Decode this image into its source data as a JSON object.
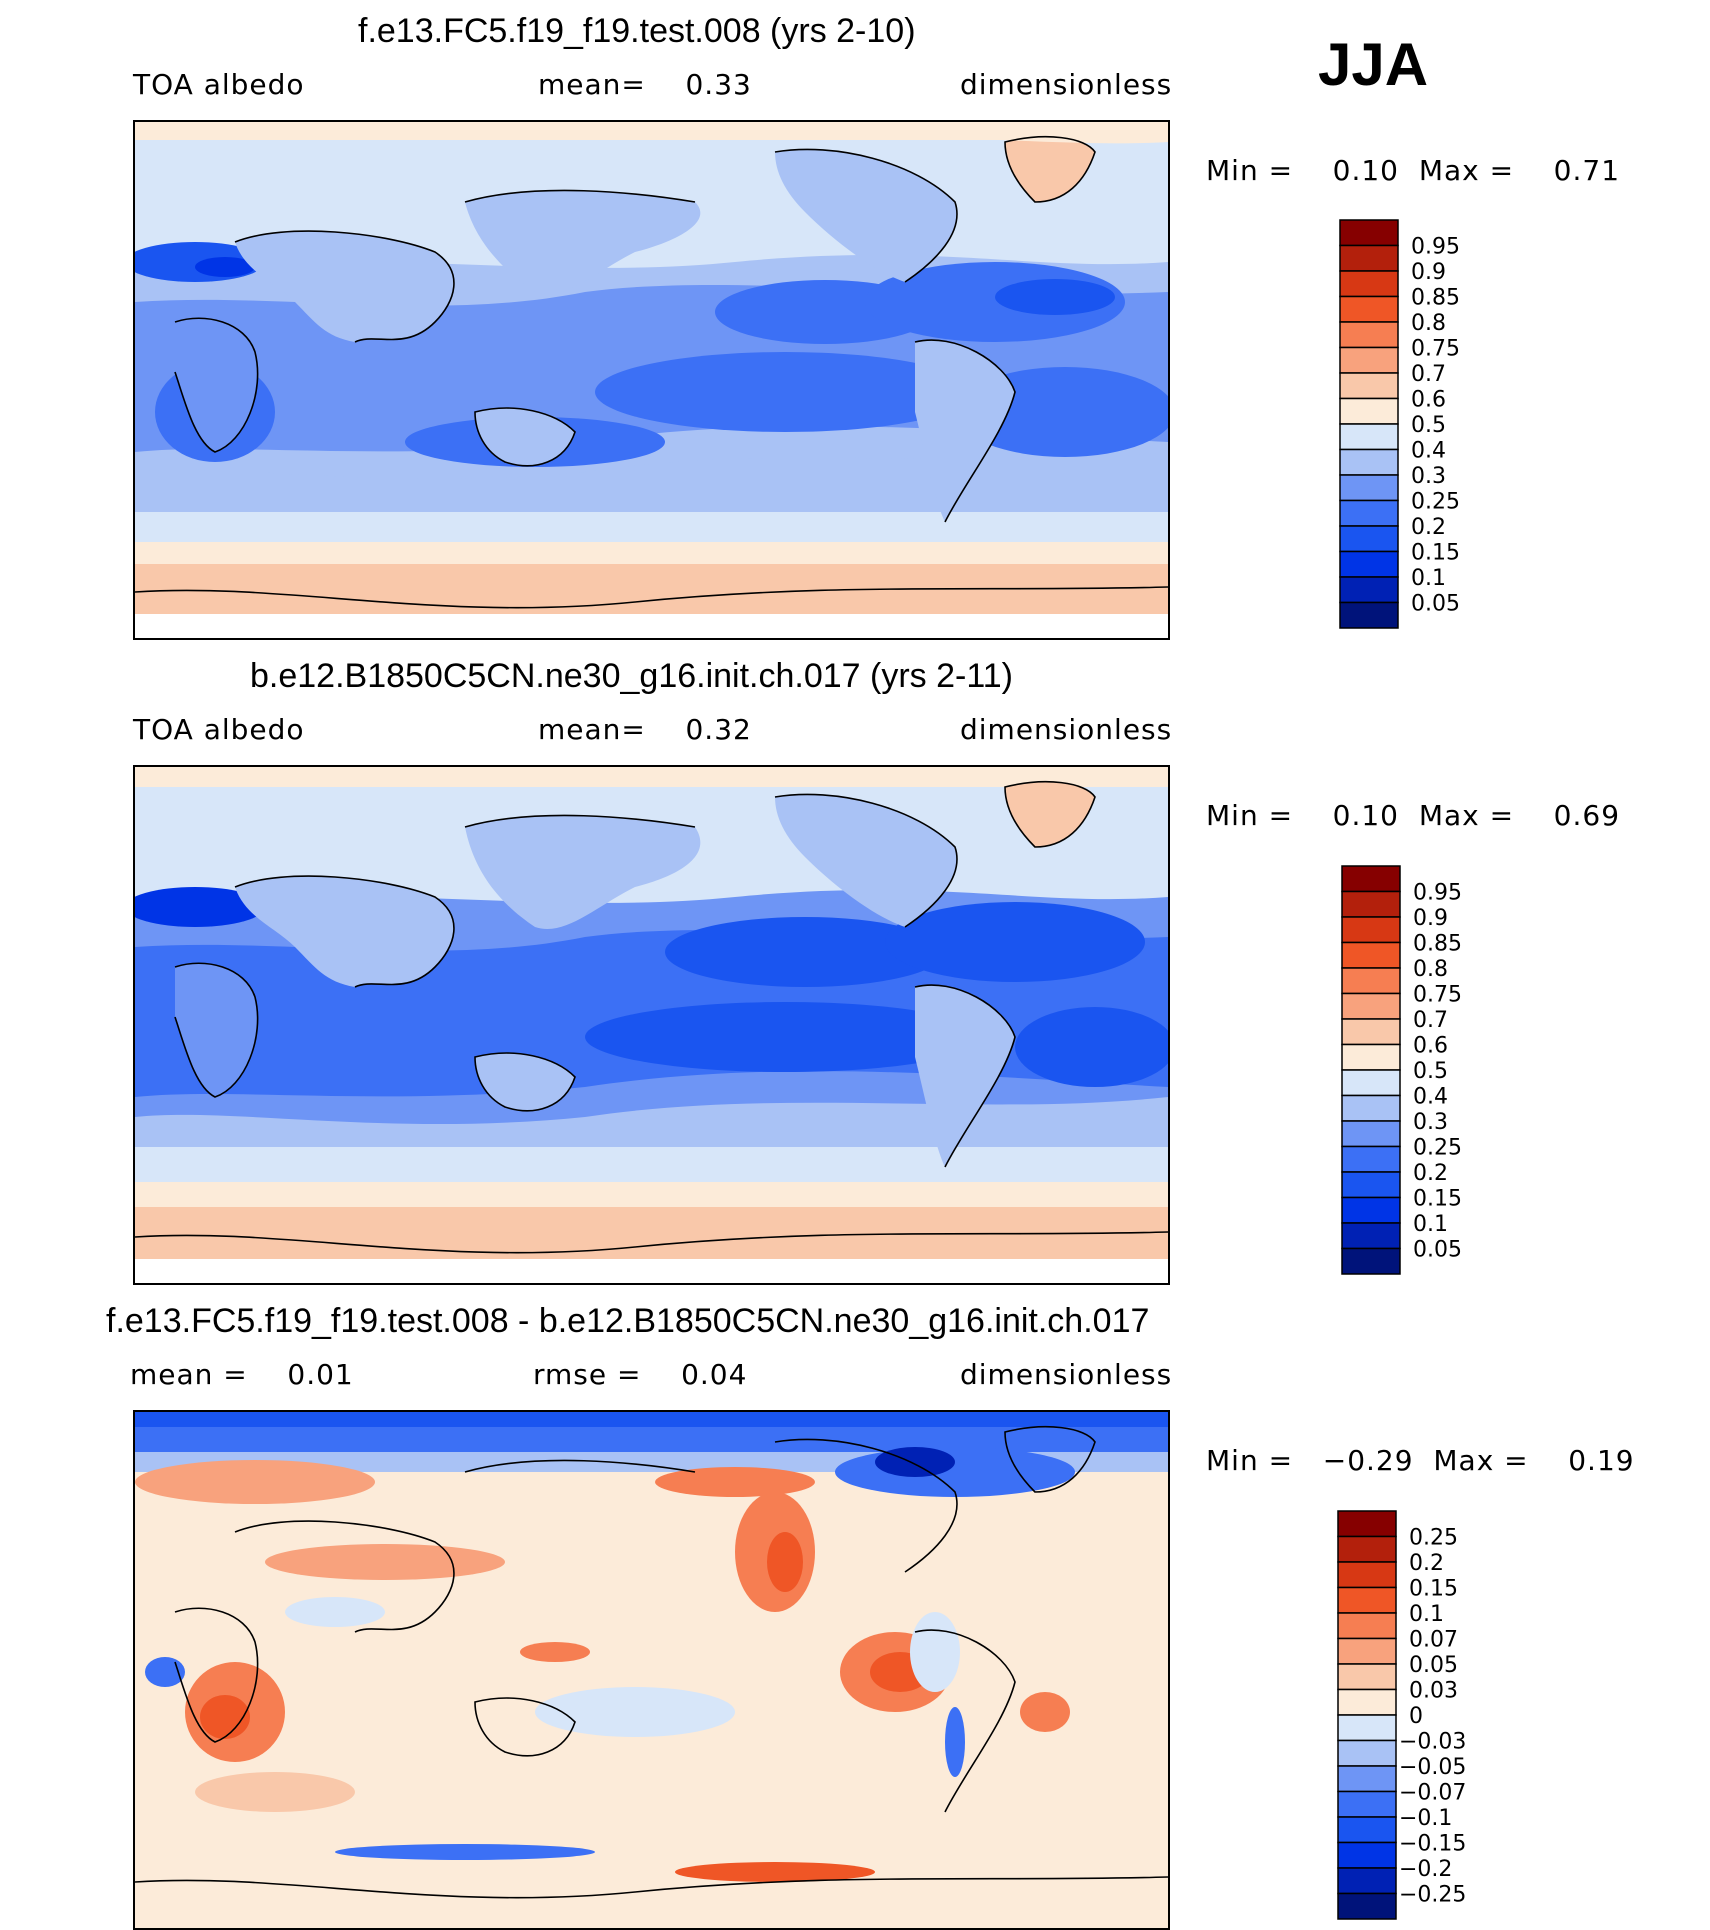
{
  "season": "JJA",
  "palettes": {
    "abs": [
      "#00137a",
      "#0021b4",
      "#0034e6",
      "#1a55f0",
      "#3c70f5",
      "#6e95f5",
      "#a9c2f5",
      "#d7e6f9",
      "#fcebd9",
      "#f9c8aa",
      "#f8a27d",
      "#f67e52",
      "#ef5626",
      "#d73814",
      "#b3200c",
      "#860000"
    ],
    "diff": [
      "#00137a",
      "#0021b4",
      "#0034e6",
      "#1a55f0",
      "#3c70f5",
      "#6e95f5",
      "#a9c2f5",
      "#d7e6f9",
      "#fcebd9",
      "#f9c8aa",
      "#f8a27d",
      "#f67e52",
      "#ef5626",
      "#d73814",
      "#b3200c",
      "#860000"
    ]
  },
  "panels": [
    {
      "title": "f.e13.FC5.f19_f19.test.008 (yrs 2-10)",
      "left_label": "TOA  albedo",
      "center_label": "mean=",
      "center_value": "0.33",
      "right_label": "dimensionless",
      "min_label": "Min  =",
      "min_value": "0.10",
      "max_label": "Max  =",
      "max_value": "0.71",
      "levels": [
        "0.95",
        "0.9",
        "0.85",
        "0.8",
        "0.75",
        "0.7",
        "0.6",
        "0.5",
        "0.4",
        "0.3",
        "0.25",
        "0.2",
        "0.15",
        "0.1",
        "0.05"
      ]
    },
    {
      "title": "b.e12.B1850C5CN.ne30_g16.init.ch.017 (yrs 2-11)",
      "left_label": "TOA  albedo",
      "center_label": "mean=",
      "center_value": "0.32",
      "right_label": "dimensionless",
      "min_label": "Min  =",
      "min_value": "0.10",
      "max_label": "Max  =",
      "max_value": "0.69",
      "levels": [
        "0.95",
        "0.9",
        "0.85",
        "0.8",
        "0.75",
        "0.7",
        "0.6",
        "0.5",
        "0.4",
        "0.3",
        "0.25",
        "0.2",
        "0.15",
        "0.1",
        "0.05"
      ]
    },
    {
      "title": "f.e13.FC5.f19_f19.test.008 - b.e12.B1850C5CN.ne30_g16.init.ch.017",
      "left_label": "mean  =",
      "left_value": "0.01",
      "center_label": "rmse  =",
      "center_value": "0.04",
      "right_label": "dimensionless",
      "min_label": "Min  =",
      "min_value": "−0.29",
      "max_label": "Max  =",
      "max_value": "0.19",
      "levels": [
        "0.25",
        "0.2",
        "0.15",
        "0.1",
        "0.07",
        "0.05",
        "0.03",
        "0",
        "−0.03",
        "−0.05",
        "−0.07",
        "−0.1",
        "−0.15",
        "−0.2",
        "−0.25"
      ]
    }
  ]
}
